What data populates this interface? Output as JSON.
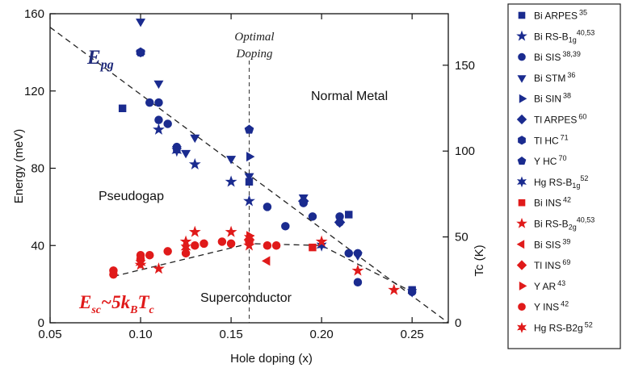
{
  "chart_data": {
    "type": "scatter",
    "title": "",
    "xlabel": "Hole doping (x)",
    "ylabel": "Energy (meV)",
    "y2label": "Tc (K)",
    "xlim": [
      0.05,
      0.27
    ],
    "ylim": [
      0,
      160
    ],
    "y2lim": [
      0,
      180
    ],
    "xticks": [
      "0.05",
      "0.10",
      "0.15",
      "0.20",
      "0.25"
    ],
    "yticks": [
      "0",
      "40",
      "80",
      "120",
      "160"
    ],
    "y2ticks": [
      "0",
      "50",
      "100",
      "150"
    ],
    "grid": false,
    "legend_position": "right",
    "annotations": {
      "optimal_line1": "Optimal",
      "optimal_line2": "Doping",
      "epg_main": "E",
      "epg_sub": "pg",
      "esc": "E",
      "esc_sub": "sc",
      "esc_rest": "~5k",
      "esc_b": "B",
      "esc_t": "T",
      "esc_c": "c",
      "normal_metal": "Normal Metal",
      "pseudogap": "Pseudogap",
      "superconductor": "Superconductor"
    },
    "optimal_doping_x": 0.16,
    "epg_line": {
      "x": [
        0.05,
        0.27
      ],
      "y": [
        153,
        0
      ]
    },
    "esc_line": {
      "x": [
        0.085,
        0.16,
        0.2,
        0.25
      ],
      "y": [
        24,
        41,
        40,
        16
      ]
    },
    "colors": {
      "blue": "#1a2b8f",
      "red": "#e01a1a",
      "line": "#222222",
      "epg_text": "#1f2a7a",
      "esc_text": "#e01a1a"
    },
    "series": [
      {
        "name": "Bi ARPES",
        "sup": "35",
        "marker": "square",
        "color": "#1a2b8f",
        "x": [
          0.09,
          0.12,
          0.16,
          0.215,
          0.25
        ],
        "y": [
          111,
          90,
          73,
          56,
          17
        ]
      },
      {
        "name": "Bi RS-B",
        "sub": "1g",
        "sup": "40,53",
        "marker": "star",
        "color": "#1a2b8f",
        "x": [
          0.11,
          0.13,
          0.15,
          0.16
        ],
        "y": [
          100,
          82,
          73,
          63
        ]
      },
      {
        "name": "Bi SIS",
        "sup": "38,39",
        "marker": "circle",
        "color": "#1a2b8f",
        "x": [
          0.105,
          0.11,
          0.11,
          0.115,
          0.12,
          0.17,
          0.18,
          0.19,
          0.195,
          0.21,
          0.21,
          0.215,
          0.22,
          0.22,
          0.25
        ],
        "y": [
          114,
          114,
          105,
          103,
          91,
          60,
          50,
          62,
          55,
          55,
          52,
          36,
          21,
          36,
          16
        ]
      },
      {
        "name": "Bi STM",
        "sup": "36",
        "marker": "triangle-down",
        "color": "#1a2b8f",
        "x": [
          0.1,
          0.11,
          0.12,
          0.125,
          0.13,
          0.15,
          0.16,
          0.19,
          0.22,
          0.25
        ],
        "y": [
          156,
          124,
          90,
          88,
          96,
          85,
          76,
          65,
          35,
          16
        ]
      },
      {
        "name": "Bi SIN",
        "sup": "38",
        "marker": "triangle-right",
        "color": "#1a2b8f",
        "x": [
          0.16
        ],
        "y": [
          86
        ]
      },
      {
        "name": "Tl ARPES",
        "sup": "60",
        "marker": "diamond",
        "color": "#1a2b8f",
        "x": [
          0.19,
          0.21
        ],
        "y": [
          63,
          52
        ]
      },
      {
        "name": "Tl HC",
        "sup": "71",
        "marker": "hexagon",
        "color": "#1a2b8f",
        "x": [
          0.1
        ],
        "y": [
          140
        ]
      },
      {
        "name": "Y HC",
        "sup": "70",
        "marker": "pentagon",
        "color": "#1a2b8f",
        "x": [
          0.1,
          0.16
        ],
        "y": [
          140,
          100
        ]
      },
      {
        "name": "Hg RS-B",
        "sub": "1g",
        "sup": "52",
        "marker": "star6",
        "color": "#1a2b8f",
        "x": [
          0.12,
          0.2
        ],
        "y": [
          89,
          40
        ]
      },
      {
        "name": "Bi INS",
        "sup": "42",
        "marker": "square",
        "color": "#e01a1a",
        "x": [
          0.16,
          0.195
        ],
        "y": [
          42,
          39
        ]
      },
      {
        "name": "Bi RS-B",
        "sub": "2g",
        "sup": "40,53",
        "marker": "star",
        "color": "#e01a1a",
        "x": [
          0.1,
          0.11,
          0.125,
          0.13,
          0.15,
          0.16,
          0.2,
          0.22,
          0.24
        ],
        "y": [
          30,
          28,
          42,
          47,
          47,
          40,
          42,
          27,
          17
        ]
      },
      {
        "name": "Bi SIS",
        "sup": "39",
        "marker": "triangle-left",
        "color": "#e01a1a",
        "x": [
          0.17
        ],
        "y": [
          32
        ]
      },
      {
        "name": "Tl INS",
        "sup": "69",
        "marker": "diamond",
        "color": "#e01a1a",
        "x": [
          0.16
        ],
        "y": [
          43
        ]
      },
      {
        "name": "Y AR",
        "sup": "43",
        "marker": "triangle-right",
        "color": "#e01a1a",
        "x": [
          0.16
        ],
        "y": [
          45
        ]
      },
      {
        "name": "Y INS",
        "sup": "42",
        "marker": "circle",
        "color": "#e01a1a",
        "x": [
          0.085,
          0.085,
          0.1,
          0.1,
          0.105,
          0.115,
          0.125,
          0.13,
          0.135,
          0.145,
          0.15,
          0.16,
          0.17,
          0.175
        ],
        "y": [
          25,
          27,
          35,
          33,
          35,
          37,
          36,
          40,
          41,
          42,
          41,
          42,
          40,
          40
        ]
      },
      {
        "name": "Hg RS-B2g",
        "sup": "52",
        "marker": "star6",
        "color": "#e01a1a",
        "x": [
          0.1,
          0.125,
          0.16
        ],
        "y": [
          31,
          39,
          44
        ]
      }
    ]
  }
}
